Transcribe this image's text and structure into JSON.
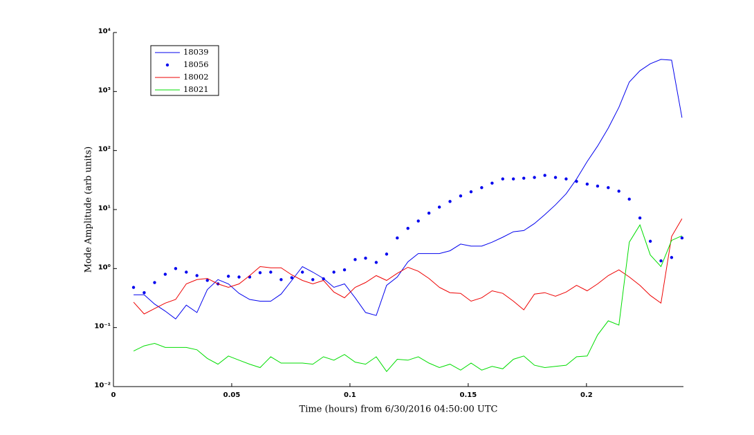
{
  "chart_data": {
    "type": "line",
    "xlabel": "Time (hours) from 6/30/2016 04:50:00 UTC",
    "ylabel": "Mode Amplitude (arb units)",
    "x": [
      0.0085,
      0.013,
      0.0174,
      0.0219,
      0.0263,
      0.0308,
      0.0353,
      0.0397,
      0.0442,
      0.0486,
      0.0531,
      0.0576,
      0.062,
      0.0665,
      0.0709,
      0.0754,
      0.0799,
      0.0843,
      0.0888,
      0.0932,
      0.0977,
      0.1022,
      0.1066,
      0.1111,
      0.1155,
      0.12,
      0.1245,
      0.1289,
      0.1334,
      0.1378,
      0.1423,
      0.1468,
      0.1512,
      0.1557,
      0.1601,
      0.1646,
      0.1691,
      0.1735,
      0.178,
      0.1824,
      0.1869,
      0.1914,
      0.1958,
      0.2003,
      0.2047,
      0.2092,
      0.2137,
      0.2181,
      0.2226,
      0.227,
      0.2315,
      0.236,
      0.2404
    ],
    "series": [
      {
        "name": "18039",
        "color": "#0000ee",
        "style": "line",
        "values": [
          0.36,
          0.36,
          0.25,
          0.19,
          0.14,
          0.24,
          0.18,
          0.44,
          0.65,
          0.55,
          0.38,
          0.3,
          0.28,
          0.28,
          0.37,
          0.63,
          1.08,
          0.87,
          0.68,
          0.48,
          0.55,
          0.32,
          0.18,
          0.16,
          0.52,
          0.72,
          1.3,
          1.8,
          1.8,
          1.8,
          2.0,
          2.6,
          2.4,
          2.4,
          2.8,
          3.4,
          4.2,
          4.4,
          5.8,
          8.2,
          12,
          18.5,
          33,
          65,
          119,
          240,
          540,
          1450,
          2250,
          2950,
          3500,
          3400,
          360
        ]
      },
      {
        "name": "18056",
        "color": "#0000ee",
        "style": "markers",
        "values": [
          0.48,
          0.39,
          0.58,
          0.8,
          1.0,
          0.87,
          0.76,
          0.63,
          0.55,
          0.74,
          0.72,
          0.72,
          0.85,
          0.87,
          0.65,
          0.7,
          0.87,
          0.65,
          0.67,
          0.87,
          0.95,
          1.42,
          1.5,
          1.27,
          1.76,
          3.3,
          4.8,
          6.4,
          8.7,
          11,
          13.7,
          17,
          20,
          23.5,
          28,
          33,
          33,
          34,
          35,
          38,
          35,
          33,
          30,
          27,
          25,
          23.5,
          20.5,
          15,
          7.2,
          2.9,
          1.35,
          1.54,
          3.3
        ]
      },
      {
        "name": "18002",
        "color": "#ee0000",
        "style": "line",
        "values": [
          0.27,
          0.17,
          0.21,
          0.26,
          0.3,
          0.55,
          0.65,
          0.68,
          0.55,
          0.48,
          0.55,
          0.76,
          1.08,
          1.03,
          1.03,
          0.78,
          0.63,
          0.55,
          0.63,
          0.4,
          0.32,
          0.48,
          0.58,
          0.76,
          0.63,
          0.83,
          1.05,
          0.9,
          0.68,
          0.48,
          0.39,
          0.38,
          0.28,
          0.32,
          0.42,
          0.38,
          0.28,
          0.2,
          0.37,
          0.39,
          0.34,
          0.4,
          0.52,
          0.42,
          0.55,
          0.76,
          0.95,
          0.72,
          0.52,
          0.35,
          0.26,
          3.5,
          7.0
        ]
      },
      {
        "name": "18021",
        "color": "#00dd00",
        "style": "line",
        "values": [
          0.04,
          0.049,
          0.054,
          0.046,
          0.046,
          0.046,
          0.042,
          0.03,
          0.024,
          0.033,
          0.028,
          0.024,
          0.021,
          0.032,
          0.025,
          0.025,
          0.025,
          0.024,
          0.032,
          0.028,
          0.035,
          0.026,
          0.024,
          0.032,
          0.018,
          0.029,
          0.028,
          0.032,
          0.025,
          0.021,
          0.024,
          0.019,
          0.025,
          0.019,
          0.022,
          0.02,
          0.029,
          0.033,
          0.023,
          0.021,
          0.022,
          0.023,
          0.032,
          0.033,
          0.075,
          0.13,
          0.11,
          2.8,
          5.5,
          1.7,
          1.08,
          3.0,
          3.6
        ]
      }
    ],
    "xlim": [
      0,
      0.241
    ],
    "xticks": [
      0,
      0.05,
      0.1,
      0.15,
      0.2
    ],
    "ylog": true,
    "ylim": [
      0.01,
      10000
    ],
    "yticks": [
      {
        "value": 0.01,
        "label": "10⁻²"
      },
      {
        "value": 0.1,
        "label": "10⁻¹"
      },
      {
        "value": 1,
        "label": "10⁰"
      },
      {
        "value": 10,
        "label": "10¹"
      },
      {
        "value": 100,
        "label": "10²"
      },
      {
        "value": 1000,
        "label": "10³"
      },
      {
        "value": 10000,
        "label": "10⁴"
      }
    ],
    "legend": "upper left"
  }
}
